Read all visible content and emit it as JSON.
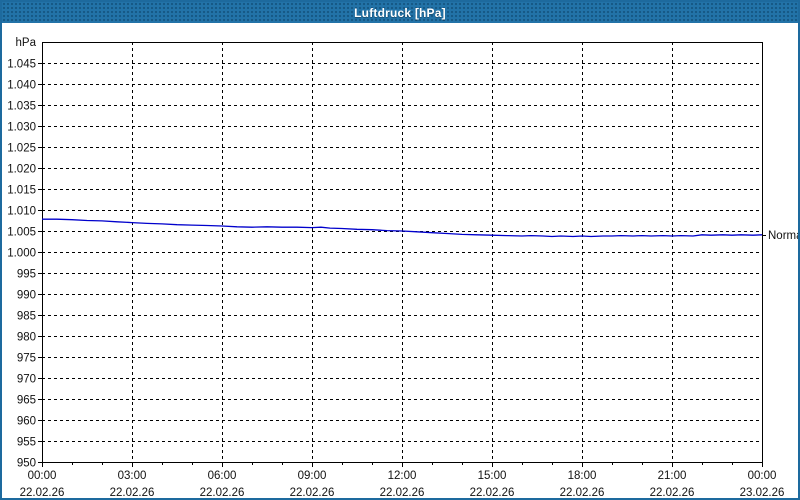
{
  "title": "Luftdruck [hPa]",
  "chart_data": {
    "type": "line",
    "title": "Luftdruck [hPa]",
    "ylabel": "hPa",
    "xlabel": "",
    "ylim": [
      950,
      1050
    ],
    "ytick_step": 5,
    "grid": "on",
    "legend_position": "none",
    "line_color": "#0000cc",
    "grid_color": "#000000",
    "right_label": "Normal",
    "yticks": [
      {
        "value": 1045,
        "label": "1.045"
      },
      {
        "value": 1040,
        "label": "1.040"
      },
      {
        "value": 1035,
        "label": "1.035"
      },
      {
        "value": 1030,
        "label": "1.030"
      },
      {
        "value": 1025,
        "label": "1.025"
      },
      {
        "value": 1020,
        "label": "1.020"
      },
      {
        "value": 1015,
        "label": "1.015"
      },
      {
        "value": 1010,
        "label": "1.010"
      },
      {
        "value": 1005,
        "label": "1.005"
      },
      {
        "value": 1000,
        "label": "1.000"
      },
      {
        "value": 995,
        "label": "995"
      },
      {
        "value": 990,
        "label": "990"
      },
      {
        "value": 985,
        "label": "985"
      },
      {
        "value": 980,
        "label": "980"
      },
      {
        "value": 975,
        "label": "975"
      },
      {
        "value": 970,
        "label": "970"
      },
      {
        "value": 965,
        "label": "965"
      },
      {
        "value": 960,
        "label": "960"
      },
      {
        "value": 955,
        "label": "955"
      },
      {
        "value": 950,
        "label": "950"
      }
    ],
    "xticks": [
      {
        "hour": 0,
        "time": "00:00",
        "date": "22.02.26"
      },
      {
        "hour": 3,
        "time": "03:00",
        "date": "22.02.26"
      },
      {
        "hour": 6,
        "time": "06:00",
        "date": "22.02.26"
      },
      {
        "hour": 9,
        "time": "09:00",
        "date": "22.02.26"
      },
      {
        "hour": 12,
        "time": "12:00",
        "date": "22.02.26"
      },
      {
        "hour": 15,
        "time": "15:00",
        "date": "22.02.26"
      },
      {
        "hour": 18,
        "time": "18:00",
        "date": "22.02.26"
      },
      {
        "hour": 21,
        "time": "21:00",
        "date": "22.02.26"
      },
      {
        "hour": 24,
        "time": "00:00",
        "date": "23.02.26"
      }
    ],
    "vertical_grid_hours": [
      3,
      6,
      9,
      12,
      15,
      18,
      21
    ],
    "minor_tick_every_hours": 1,
    "series": [
      {
        "name": "Luftdruck",
        "x": [
          0,
          0.5,
          1,
          1.5,
          2,
          2.5,
          3,
          3.5,
          4,
          4.5,
          5,
          5.5,
          6,
          6.5,
          7,
          7.5,
          8,
          8.5,
          9,
          9.3,
          9.6,
          10,
          10.5,
          11,
          11.5,
          12,
          12.5,
          13,
          13.5,
          14,
          14.5,
          15,
          15.5,
          16,
          16.3,
          16.7,
          17,
          17.3,
          17.7,
          18,
          18.3,
          18.7,
          19,
          19.3,
          19.7,
          20,
          20.3,
          20.7,
          21,
          21.3,
          21.7,
          22,
          22.3,
          22.7,
          23,
          23.3,
          23.7,
          24
        ],
        "values": [
          1007.8,
          1007.8,
          1007.7,
          1007.5,
          1007.4,
          1007.2,
          1007.0,
          1006.8,
          1006.7,
          1006.5,
          1006.4,
          1006.3,
          1006.2,
          1006.0,
          1005.9,
          1006.0,
          1005.9,
          1005.9,
          1005.8,
          1005.9,
          1005.7,
          1005.6,
          1005.4,
          1005.3,
          1005.1,
          1005.0,
          1004.8,
          1004.6,
          1004.4,
          1004.2,
          1004.1,
          1004.0,
          1003.9,
          1003.8,
          1003.9,
          1003.8,
          1003.7,
          1003.8,
          1003.7,
          1003.8,
          1003.7,
          1003.8,
          1003.8,
          1003.9,
          1003.8,
          1003.9,
          1003.8,
          1003.9,
          1003.8,
          1003.9,
          1003.8,
          1004.1,
          1004.0,
          1004.1,
          1004.0,
          1004.1,
          1004.0,
          1004.1
        ]
      }
    ]
  }
}
